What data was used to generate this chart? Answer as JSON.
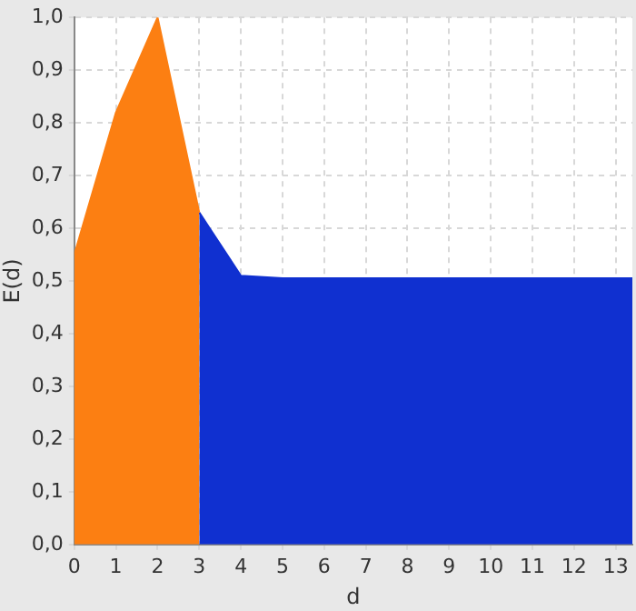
{
  "chart_data": {
    "type": "area",
    "xlabel": "d",
    "ylabel": "E(d)",
    "series": [
      {
        "color": "#fc7f12",
        "x": [
          0,
          1,
          2,
          3
        ],
        "values": [
          0.55,
          0.82,
          1.0,
          0.63
        ]
      },
      {
        "color": "#1030d0",
        "x": [
          3,
          4,
          5,
          6,
          7,
          8,
          9,
          10,
          11,
          12,
          13,
          13.4
        ],
        "values": [
          0.63,
          0.51,
          0.505,
          0.505,
          0.505,
          0.505,
          0.505,
          0.505,
          0.505,
          0.505,
          0.505,
          0.505
        ]
      }
    ],
    "xlim": [
      0,
      13.4
    ],
    "xticks": [
      0,
      1,
      2,
      3,
      4,
      5,
      6,
      7,
      8,
      9,
      10,
      11,
      12,
      13
    ],
    "ylim": [
      0,
      1.0
    ],
    "yticks": [
      {
        "value": 0,
        "label": "0,0"
      },
      {
        "value": 0.1,
        "label": "0,1"
      },
      {
        "value": 0.2,
        "label": "0,2"
      },
      {
        "value": 0.3,
        "label": "0,3"
      },
      {
        "value": 0.4,
        "label": "0,4"
      },
      {
        "value": 0.5,
        "label": "0,5"
      },
      {
        "value": 0.6,
        "label": "0,6"
      },
      {
        "value": 0.7,
        "label": "0,7"
      },
      {
        "value": 0.8,
        "label": "0,8"
      },
      {
        "value": 0.9,
        "label": "0,9"
      },
      {
        "value": 1.0,
        "label": "1,0"
      }
    ],
    "grid": true,
    "legend": false
  }
}
